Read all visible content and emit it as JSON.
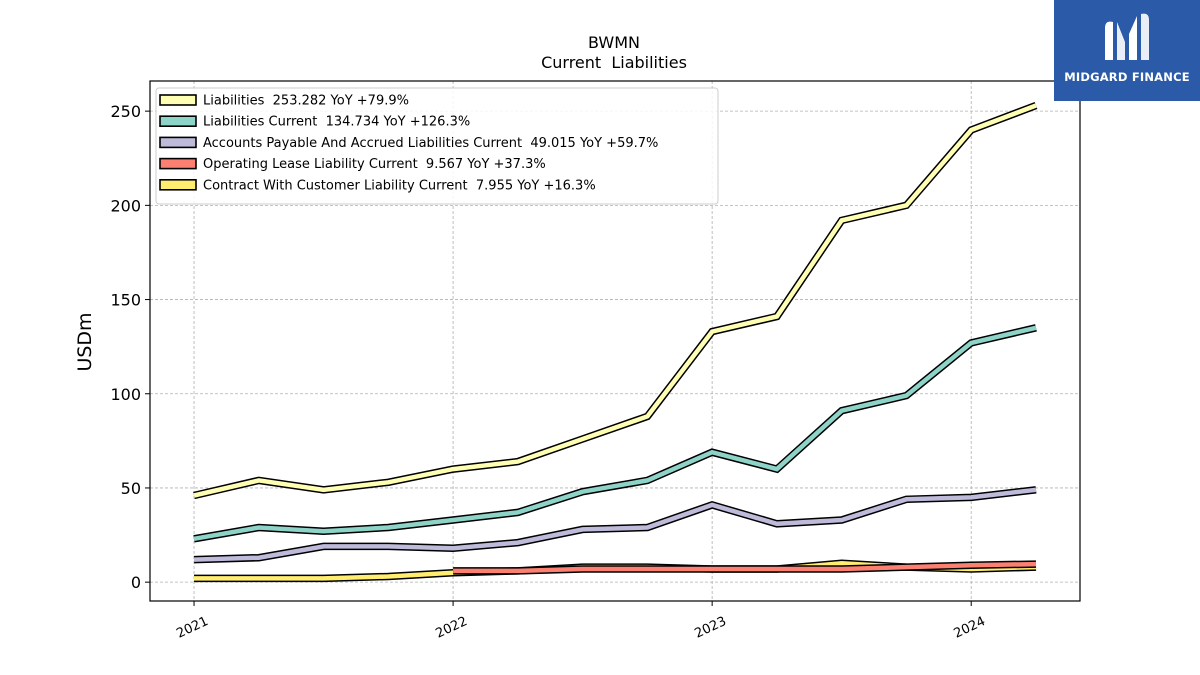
{
  "chart_data": {
    "type": "line",
    "title": "BWMN",
    "subtitle": "Current  Liabilities",
    "ylabel": "USDm",
    "xlabel": "",
    "ylim": [
      -10,
      266
    ],
    "xlim": [
      2020.83,
      2024.42
    ],
    "yticks": [
      0,
      50,
      100,
      150,
      200,
      250
    ],
    "xticks": [
      {
        "value": 2021,
        "label": "2021"
      },
      {
        "value": 2022,
        "label": "2022"
      },
      {
        "value": 2023,
        "label": "2023"
      },
      {
        "value": 2024,
        "label": "2024"
      }
    ],
    "grid": true,
    "legend_position": "top-left",
    "series": [
      {
        "name": "Liabilities  253.282 YoY +79.9%",
        "color": "#ffffb3",
        "x": [
          2021.0,
          2021.25,
          2021.5,
          2021.75,
          2022.0,
          2022.25,
          2022.5,
          2022.75,
          2023.0,
          2023.25,
          2023.5,
          2023.75,
          2024.0,
          2024.25
        ],
        "y": [
          46,
          54,
          49,
          53,
          60,
          64,
          76,
          88,
          133,
          141,
          192,
          200,
          240,
          253
        ]
      },
      {
        "name": "Liabilities Current  134.734 YoY +126.3%",
        "color": "#8dd3c7",
        "x": [
          2021.0,
          2021.25,
          2021.5,
          2021.75,
          2022.0,
          2022.25,
          2022.5,
          2022.75,
          2023.0,
          2023.25,
          2023.5,
          2023.75,
          2024.0,
          2024.25
        ],
        "y": [
          23,
          29,
          27,
          29,
          33,
          37,
          48,
          54,
          69,
          60,
          91,
          99,
          127,
          135
        ]
      },
      {
        "name": "Accounts Payable And Accrued Liabilities Current  49.015 YoY +59.7%",
        "color": "#bebada",
        "x": [
          2021.0,
          2021.25,
          2021.5,
          2021.75,
          2022.0,
          2022.25,
          2022.5,
          2022.75,
          2023.0,
          2023.25,
          2023.5,
          2023.75,
          2024.0,
          2024.25
        ],
        "y": [
          12,
          13,
          19,
          19,
          18,
          21,
          28,
          29,
          41,
          31,
          33,
          44,
          45,
          49
        ]
      },
      {
        "name": "Operating Lease Liability Current  9.567 YoY +37.3%",
        "color": "#fb8072",
        "x": [
          2022.0,
          2022.25,
          2022.5,
          2022.75,
          2023.0,
          2023.25,
          2023.5,
          2023.75,
          2024.0,
          2024.25
        ],
        "y": [
          6,
          6,
          7,
          7,
          7,
          7,
          7,
          8,
          9,
          9.6
        ]
      },
      {
        "name": "Contract With Customer Liability Current  7.955 YoY +16.3%",
        "color": "#ffed6f",
        "x": [
          2021.0,
          2021.25,
          2021.5,
          2021.75,
          2022.0,
          2022.25,
          2022.5,
          2022.75,
          2023.0,
          2023.25,
          2023.5,
          2023.75,
          2024.0,
          2024.25
        ],
        "y": [
          2,
          2,
          2,
          3,
          5,
          6,
          8,
          8,
          7,
          7,
          10,
          8,
          7,
          8
        ]
      }
    ]
  },
  "logo": {
    "text": "MIDGARD FINANCE",
    "background": "#2a5aa8"
  }
}
